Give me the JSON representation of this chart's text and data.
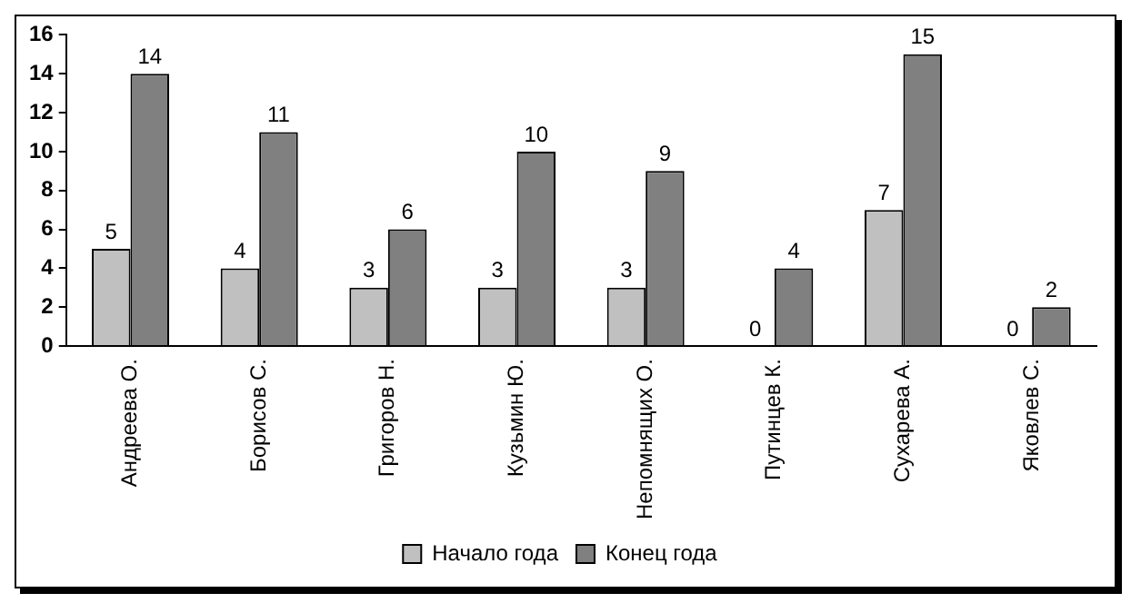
{
  "chart_data": {
    "type": "bar",
    "categories": [
      "Андреева О.",
      "Борисов С.",
      "Григоров Н.",
      "Кузьмин Ю.",
      "Непомнящих О.",
      "Путинцев К.",
      "Сухарева А.",
      "Яковлев С."
    ],
    "series": [
      {
        "name": "Начало года",
        "color": "#c0c0c0",
        "values": [
          5,
          4,
          3,
          3,
          3,
          0,
          7,
          0
        ]
      },
      {
        "name": "Конец года",
        "color": "#808080",
        "values": [
          14,
          11,
          6,
          10,
          9,
          4,
          15,
          2
        ]
      }
    ],
    "ylim": [
      0,
      16
    ],
    "yticks": [
      0,
      2,
      4,
      6,
      8,
      10,
      12,
      14,
      16
    ],
    "grid": false,
    "legend": "bottom",
    "data_labels": true
  }
}
